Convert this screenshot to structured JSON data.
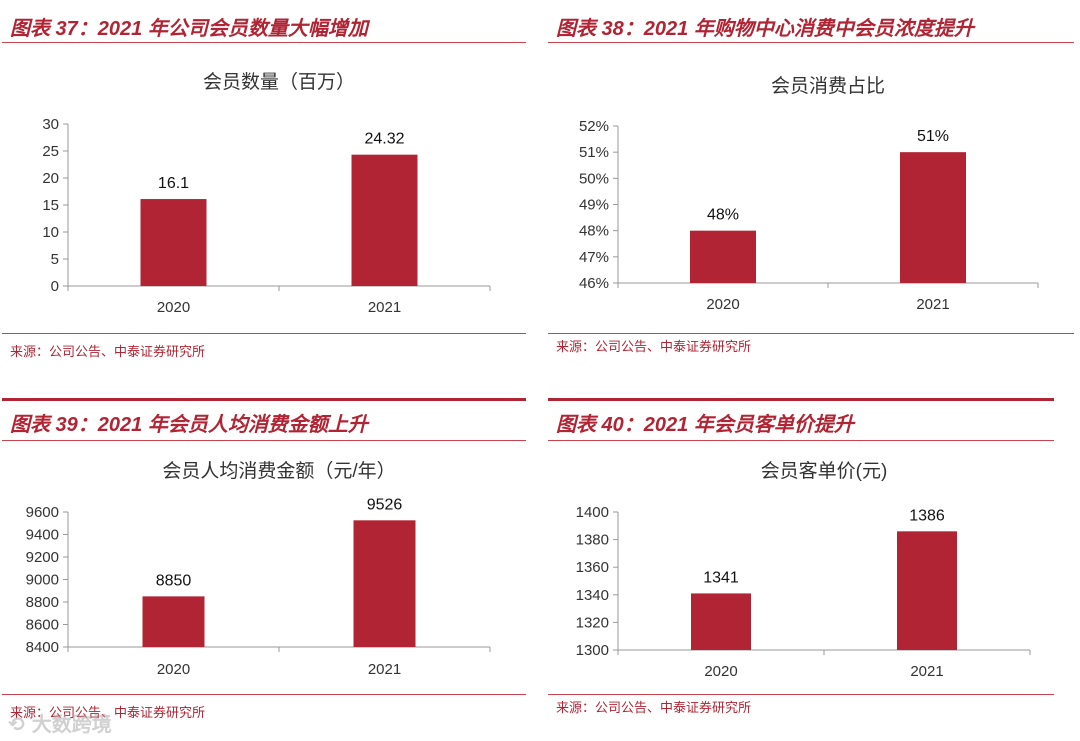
{
  "panels": [
    {
      "figure_title": "图表 37：2021 年公司会员数量大幅增加",
      "source": "来源：公司公告、中泰证券研究所"
    },
    {
      "figure_title": "图表 38：2021 年购物中心消费中会员浓度提升",
      "source": "来源：公司公告、中泰证券研究所"
    },
    {
      "figure_title": "图表 39：2021 年会员人均消费金额上升",
      "source": "来源：公司公告、中泰证券研究所"
    },
    {
      "figure_title": "图表 40：2021 年会员客单价提升",
      "source": "来源：公司公告、中泰证券研究所"
    }
  ],
  "watermark": "大数跨境",
  "colors": {
    "bar": "#b02433",
    "accent": "#b02433",
    "axis": "#999999"
  },
  "chart_data": [
    {
      "type": "bar",
      "title": "会员数量（百万）",
      "categories": [
        "2020",
        "2021"
      ],
      "values": [
        16.1,
        24.32
      ],
      "value_labels": [
        "16.1",
        "24.32"
      ],
      "ylim": [
        0,
        30
      ],
      "yticks": [
        "0",
        "5",
        "10",
        "15",
        "20",
        "25",
        "30"
      ],
      "grid": false,
      "legend": "none"
    },
    {
      "type": "bar",
      "title": "会员消费占比",
      "categories": [
        "2020",
        "2021"
      ],
      "values": [
        48,
        51
      ],
      "value_labels": [
        "48%",
        "51%"
      ],
      "ylim": [
        46,
        52
      ],
      "yticks": [
        "46%",
        "47%",
        "48%",
        "49%",
        "50%",
        "51%",
        "52%"
      ],
      "grid": false,
      "legend": "none"
    },
    {
      "type": "bar",
      "title": "会员人均消费金额（元/年）",
      "categories": [
        "2020",
        "2021"
      ],
      "values": [
        8850,
        9526
      ],
      "value_labels": [
        "8850",
        "9526"
      ],
      "ylim": [
        8400,
        9600
      ],
      "yticks": [
        "8400",
        "8600",
        "8800",
        "9000",
        "9200",
        "9400",
        "9600"
      ],
      "grid": false,
      "legend": "none"
    },
    {
      "type": "bar",
      "title": "会员客单价(元)",
      "categories": [
        "2020",
        "2021"
      ],
      "values": [
        1341,
        1386
      ],
      "value_labels": [
        "1341",
        "1386"
      ],
      "ylim": [
        1300,
        1400
      ],
      "yticks": [
        "1300",
        "1320",
        "1340",
        "1360",
        "1380",
        "1400"
      ],
      "grid": false,
      "legend": "none"
    }
  ]
}
